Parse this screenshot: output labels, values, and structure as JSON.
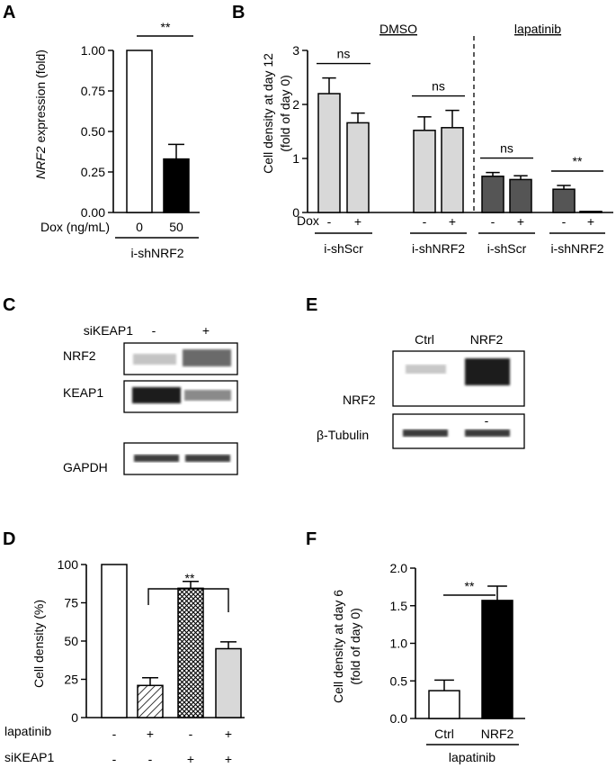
{
  "panels": {
    "A": "A",
    "B": "B",
    "C": "C",
    "D": "D",
    "E": "E",
    "F": "F"
  },
  "chart_data": [
    {
      "panel": "A",
      "type": "bar",
      "ylabel_italic": "NRF2",
      "ylabel_rest": " expression (fold)",
      "ylim": [
        0,
        1
      ],
      "yticks": [
        "0.00",
        "0.25",
        "0.50",
        "0.75",
        "1.00"
      ],
      "row_label": "Dox (ng/mL)",
      "categories": [
        "0",
        "50"
      ],
      "values": [
        1.0,
        0.33
      ],
      "errors": [
        0,
        0.09
      ],
      "fills": [
        "#ffffff",
        "#000000"
      ],
      "group_label": "i-shNRF2",
      "significance": "**"
    },
    {
      "panel": "B",
      "type": "bar",
      "ylabel_line1": "Cell density at day 12",
      "ylabel_line2": "(fold of day 0)",
      "ylim": [
        0,
        3
      ],
      "yticks": [
        "0",
        "1",
        "2",
        "3"
      ],
      "sections": [
        "DMSO",
        "lapatinib"
      ],
      "row_label": "Dox",
      "dox_marks": [
        "-",
        "+",
        "-",
        "+",
        "-",
        "+",
        "-",
        "+"
      ],
      "groups": [
        "i-shScr",
        "i-shNRF2",
        "i-shScr",
        "i-shNRF2"
      ],
      "values": [
        2.2,
        1.66,
        1.52,
        1.57,
        0.67,
        0.61,
        0.43,
        0.02
      ],
      "errors": [
        0.29,
        0.18,
        0.25,
        0.32,
        0.07,
        0.07,
        0.07,
        0
      ],
      "fills": [
        "#d8d8d8",
        "#d8d8d8",
        "#d8d8d8",
        "#d8d8d8",
        "#555555",
        "#555555",
        "#555555",
        "#555555"
      ],
      "significance": [
        "ns",
        "ns",
        "ns",
        "**"
      ]
    },
    {
      "panel": "D",
      "type": "bar",
      "ylabel": "Cell density (%)",
      "ylim": [
        0,
        100
      ],
      "yticks": [
        "0",
        "25",
        "50",
        "75",
        "100"
      ],
      "values": [
        100,
        21,
        84.5,
        45
      ],
      "errors": [
        0,
        5,
        4.5,
        4.5
      ],
      "fills": [
        "white",
        "hatch",
        "crosshatch",
        "#d8d8d8"
      ],
      "row1_label": "lapatinib",
      "row1_marks": [
        "-",
        "+",
        "-",
        "+"
      ],
      "row2_label": "siKEAP1",
      "row2_marks": [
        "-",
        "-",
        "+",
        "+"
      ],
      "significance": "**"
    },
    {
      "panel": "F",
      "type": "bar",
      "ylabel_line1": "Cell density at day 6",
      "ylabel_line2": "(fold of day 0)",
      "ylim": [
        0,
        2
      ],
      "yticks": [
        "0.0",
        "0.5",
        "1.0",
        "1.5",
        "2.0"
      ],
      "categories": [
        "Ctrl",
        "NRF2"
      ],
      "values": [
        0.37,
        1.57
      ],
      "errors": [
        0.14,
        0.19
      ],
      "fills": [
        "#ffffff",
        "#000000"
      ],
      "group_label": "lapatinib",
      "significance": "**"
    }
  ],
  "blots": {
    "C": {
      "treatment_label": "siKEAP1",
      "lane_marks": [
        "-",
        "+"
      ],
      "rows": [
        "NRF2",
        "KEAP1",
        "GAPDH"
      ]
    },
    "E": {
      "lanes": [
        "Ctrl",
        "NRF2"
      ],
      "rows": [
        "NRF2",
        "β-Tubulin"
      ],
      "artifact": "-"
    }
  }
}
